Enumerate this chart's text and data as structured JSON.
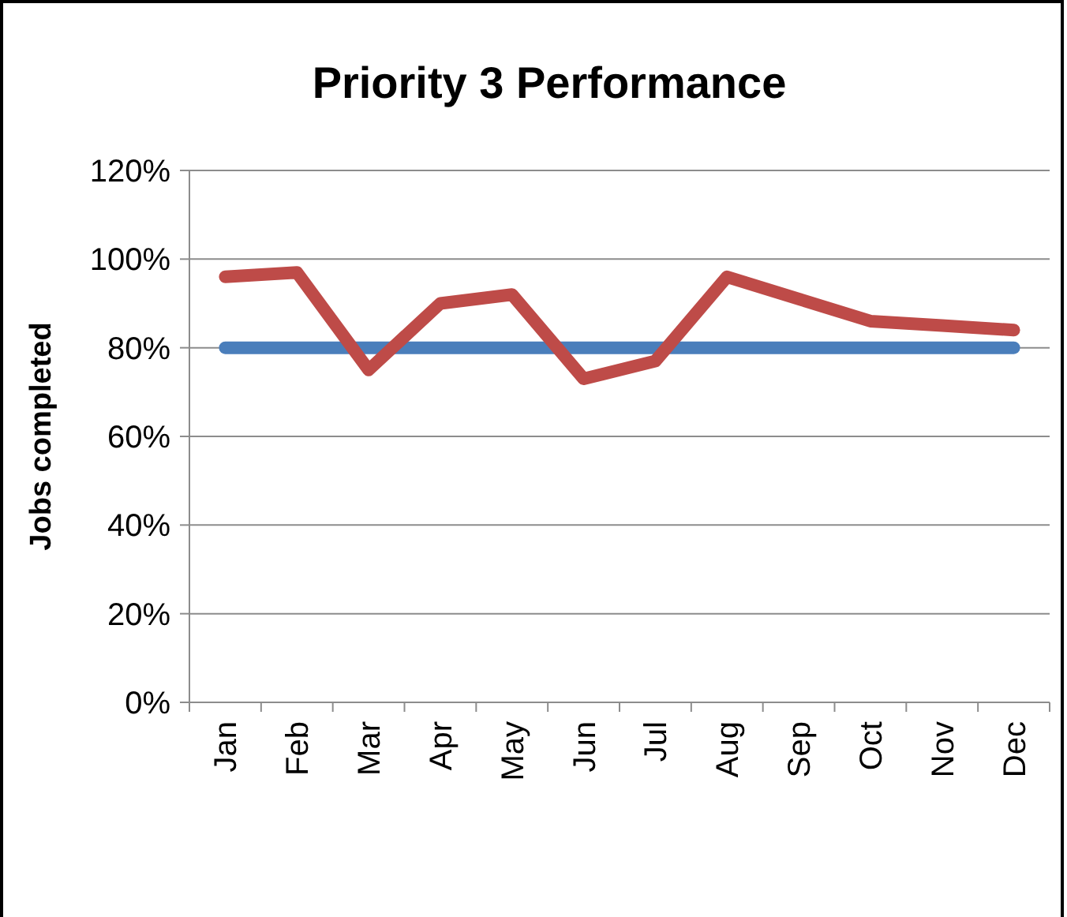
{
  "chart_data": {
    "type": "line",
    "title": "Priority 3 Performance",
    "ylabel": "Jobs completed",
    "categories": [
      "Jan",
      "Feb",
      "Mar",
      "Apr",
      "May",
      "Jun",
      "Jul",
      "Aug",
      "Sep",
      "Oct",
      "Nov",
      "Dec"
    ],
    "series": [
      {
        "color": "#4a7ebb",
        "values": [
          80,
          80,
          80,
          80,
          80,
          80,
          80,
          80,
          80,
          80,
          80,
          80
        ]
      },
      {
        "color": "#be4b48",
        "values": [
          96,
          97,
          75,
          90,
          92,
          73,
          77,
          96,
          91,
          86,
          85,
          84
        ]
      }
    ],
    "ylim": [
      0,
      120
    ],
    "yticks": [
      {
        "value": 0,
        "label": "0%"
      },
      {
        "value": 20,
        "label": "20%"
      },
      {
        "value": 40,
        "label": "40%"
      },
      {
        "value": 60,
        "label": "60%"
      },
      {
        "value": 80,
        "label": "80%"
      },
      {
        "value": 100,
        "label": "100%"
      },
      {
        "value": 120,
        "label": "120%"
      }
    ],
    "grid": "y",
    "marker": "none",
    "line_style": "solid"
  }
}
